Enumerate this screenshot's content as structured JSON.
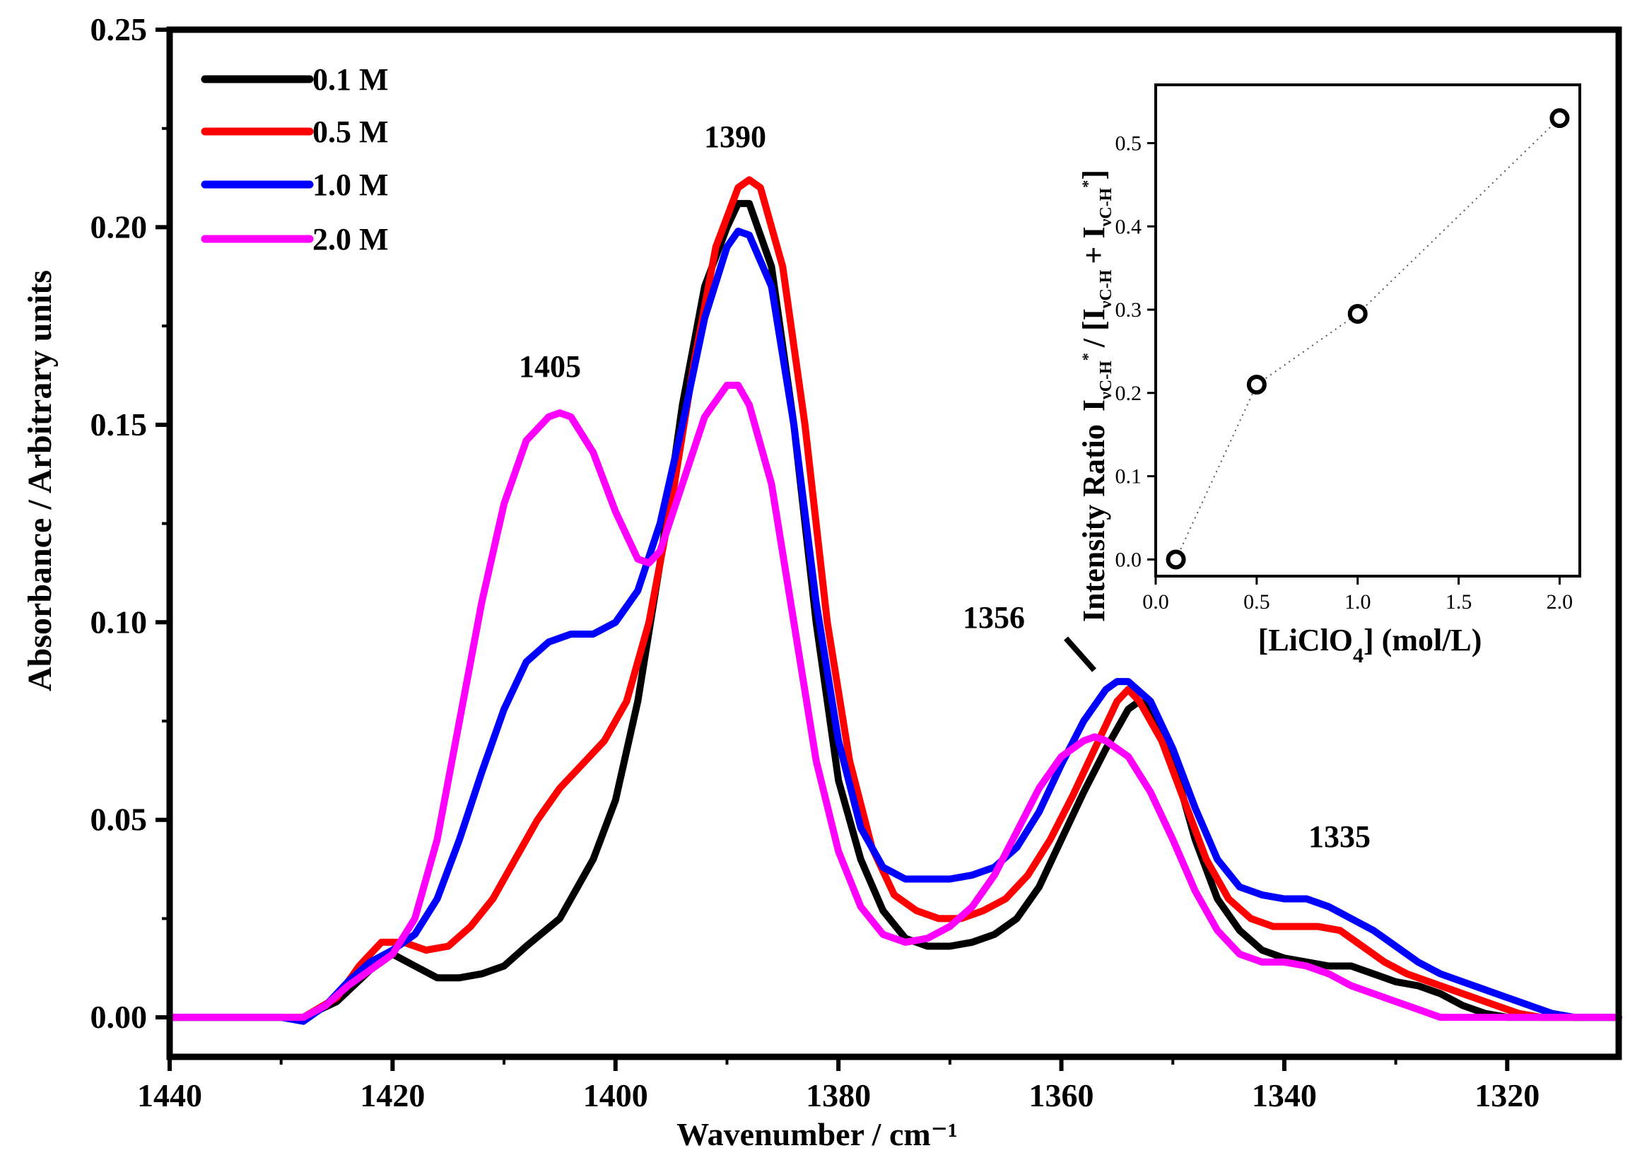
{
  "chart_data": [
    {
      "type": "line",
      "title": "",
      "xlabel": "Wavenumber / cm⁻¹",
      "ylabel": "Absorbance / Arbitrary units",
      "xlim": [
        1440,
        1310
      ],
      "ylim": [
        -0.01,
        0.25
      ],
      "x_ticks": [
        1440,
        1420,
        1400,
        1380,
        1360,
        1340,
        1320
      ],
      "x_tick_labels": [
        "1440",
        "1420",
        "1400",
        "1380",
        "1360",
        "1340",
        "1320"
      ],
      "y_ticks": [
        0.0,
        0.05,
        0.1,
        0.15,
        0.2,
        0.25
      ],
      "y_tick_labels": [
        "0.00",
        "0.05",
        "0.10",
        "0.15",
        "0.20",
        "0.25"
      ],
      "legend": {
        "placement": "top-left",
        "entries": [
          "0.1 M",
          "0.5 M",
          "1.0 M",
          "2.0 M"
        ]
      },
      "annotations": [
        {
          "text": "1390",
          "x": 1389,
          "y": 0.222
        },
        {
          "text": "1405",
          "x": 1405,
          "y": 0.161
        },
        {
          "text": "1356",
          "x": 1364,
          "y": 0.098
        },
        {
          "text": "1335",
          "x": 1335,
          "y": 0.043
        }
      ],
      "series": [
        {
          "name": "0.1 M",
          "color": "#000000",
          "points": [
            [
              1440,
              0.0
            ],
            [
              1436,
              0.0
            ],
            [
              1432,
              0.0
            ],
            [
              1428,
              0.0
            ],
            [
              1425,
              0.004
            ],
            [
              1422,
              0.012
            ],
            [
              1420,
              0.016
            ],
            [
              1418,
              0.013
            ],
            [
              1416,
              0.01
            ],
            [
              1414,
              0.01
            ],
            [
              1412,
              0.011
            ],
            [
              1410,
              0.013
            ],
            [
              1408,
              0.018
            ],
            [
              1405,
              0.025
            ],
            [
              1402,
              0.04
            ],
            [
              1400,
              0.055
            ],
            [
              1398,
              0.08
            ],
            [
              1396,
              0.115
            ],
            [
              1394,
              0.155
            ],
            [
              1392,
              0.185
            ],
            [
              1390,
              0.2
            ],
            [
              1389,
              0.206
            ],
            [
              1388,
              0.206
            ],
            [
              1386,
              0.19
            ],
            [
              1384,
              0.15
            ],
            [
              1382,
              0.1
            ],
            [
              1380,
              0.06
            ],
            [
              1378,
              0.04
            ],
            [
              1376,
              0.027
            ],
            [
              1374,
              0.02
            ],
            [
              1372,
              0.018
            ],
            [
              1370,
              0.018
            ],
            [
              1368,
              0.019
            ],
            [
              1366,
              0.021
            ],
            [
              1364,
              0.025
            ],
            [
              1362,
              0.033
            ],
            [
              1360,
              0.045
            ],
            [
              1358,
              0.057
            ],
            [
              1356,
              0.068
            ],
            [
              1354,
              0.078
            ],
            [
              1353,
              0.08
            ],
            [
              1352,
              0.078
            ],
            [
              1350,
              0.065
            ],
            [
              1348,
              0.045
            ],
            [
              1346,
              0.03
            ],
            [
              1344,
              0.022
            ],
            [
              1342,
              0.017
            ],
            [
              1340,
              0.015
            ],
            [
              1338,
              0.014
            ],
            [
              1336,
              0.013
            ],
            [
              1334,
              0.013
            ],
            [
              1332,
              0.011
            ],
            [
              1330,
              0.009
            ],
            [
              1328,
              0.008
            ],
            [
              1326,
              0.006
            ],
            [
              1324,
              0.003
            ],
            [
              1322,
              0.001
            ],
            [
              1320,
              0.0
            ],
            [
              1315,
              0.0
            ],
            [
              1310,
              0.0
            ]
          ]
        },
        {
          "name": "0.5 M",
          "color": "#ff0000",
          "points": [
            [
              1440,
              0.0
            ],
            [
              1436,
              0.0
            ],
            [
              1432,
              0.0
            ],
            [
              1428,
              0.0
            ],
            [
              1425,
              0.005
            ],
            [
              1423,
              0.013
            ],
            [
              1421,
              0.019
            ],
            [
              1419,
              0.019
            ],
            [
              1417,
              0.017
            ],
            [
              1415,
              0.018
            ],
            [
              1413,
              0.023
            ],
            [
              1411,
              0.03
            ],
            [
              1409,
              0.04
            ],
            [
              1407,
              0.05
            ],
            [
              1405,
              0.058
            ],
            [
              1403,
              0.064
            ],
            [
              1401,
              0.07
            ],
            [
              1399,
              0.08
            ],
            [
              1397,
              0.1
            ],
            [
              1395,
              0.13
            ],
            [
              1393,
              0.165
            ],
            [
              1391,
              0.195
            ],
            [
              1389,
              0.21
            ],
            [
              1388,
              0.212
            ],
            [
              1387,
              0.21
            ],
            [
              1385,
              0.19
            ],
            [
              1383,
              0.15
            ],
            [
              1381,
              0.1
            ],
            [
              1379,
              0.065
            ],
            [
              1377,
              0.043
            ],
            [
              1375,
              0.031
            ],
            [
              1373,
              0.027
            ],
            [
              1371,
              0.025
            ],
            [
              1369,
              0.025
            ],
            [
              1367,
              0.027
            ],
            [
              1365,
              0.03
            ],
            [
              1363,
              0.036
            ],
            [
              1361,
              0.045
            ],
            [
              1359,
              0.056
            ],
            [
              1357,
              0.068
            ],
            [
              1355,
              0.08
            ],
            [
              1354,
              0.083
            ],
            [
              1353,
              0.08
            ],
            [
              1351,
              0.07
            ],
            [
              1349,
              0.055
            ],
            [
              1347,
              0.04
            ],
            [
              1345,
              0.03
            ],
            [
              1343,
              0.025
            ],
            [
              1341,
              0.023
            ],
            [
              1339,
              0.023
            ],
            [
              1337,
              0.023
            ],
            [
              1335,
              0.022
            ],
            [
              1333,
              0.018
            ],
            [
              1331,
              0.014
            ],
            [
              1329,
              0.011
            ],
            [
              1327,
              0.009
            ],
            [
              1325,
              0.007
            ],
            [
              1323,
              0.005
            ],
            [
              1321,
              0.003
            ],
            [
              1319,
              0.001
            ],
            [
              1317,
              0.0
            ],
            [
              1310,
              0.0
            ]
          ]
        },
        {
          "name": "1.0 M",
          "color": "#0000ff",
          "points": [
            [
              1440,
              0.0
            ],
            [
              1436,
              0.0
            ],
            [
              1432,
              0.0
            ],
            [
              1430,
              0.0
            ],
            [
              1428,
              -0.001
            ],
            [
              1426,
              0.003
            ],
            [
              1424,
              0.009
            ],
            [
              1422,
              0.014
            ],
            [
              1420,
              0.017
            ],
            [
              1418,
              0.021
            ],
            [
              1416,
              0.03
            ],
            [
              1414,
              0.045
            ],
            [
              1412,
              0.062
            ],
            [
              1410,
              0.078
            ],
            [
              1408,
              0.09
            ],
            [
              1406,
              0.095
            ],
            [
              1404,
              0.097
            ],
            [
              1402,
              0.097
            ],
            [
              1400,
              0.1
            ],
            [
              1398,
              0.108
            ],
            [
              1396,
              0.125
            ],
            [
              1394,
              0.15
            ],
            [
              1392,
              0.177
            ],
            [
              1390,
              0.195
            ],
            [
              1389,
              0.199
            ],
            [
              1388,
              0.198
            ],
            [
              1386,
              0.185
            ],
            [
              1384,
              0.15
            ],
            [
              1382,
              0.105
            ],
            [
              1380,
              0.07
            ],
            [
              1378,
              0.048
            ],
            [
              1376,
              0.038
            ],
            [
              1374,
              0.035
            ],
            [
              1372,
              0.035
            ],
            [
              1370,
              0.035
            ],
            [
              1368,
              0.036
            ],
            [
              1366,
              0.038
            ],
            [
              1364,
              0.043
            ],
            [
              1362,
              0.052
            ],
            [
              1360,
              0.064
            ],
            [
              1358,
              0.075
            ],
            [
              1356,
              0.083
            ],
            [
              1355,
              0.085
            ],
            [
              1354,
              0.085
            ],
            [
              1352,
              0.08
            ],
            [
              1350,
              0.068
            ],
            [
              1348,
              0.053
            ],
            [
              1346,
              0.04
            ],
            [
              1344,
              0.033
            ],
            [
              1342,
              0.031
            ],
            [
              1340,
              0.03
            ],
            [
              1338,
              0.03
            ],
            [
              1336,
              0.028
            ],
            [
              1334,
              0.025
            ],
            [
              1332,
              0.022
            ],
            [
              1330,
              0.018
            ],
            [
              1328,
              0.014
            ],
            [
              1326,
              0.011
            ],
            [
              1324,
              0.009
            ],
            [
              1322,
              0.007
            ],
            [
              1320,
              0.005
            ],
            [
              1318,
              0.003
            ],
            [
              1316,
              0.001
            ],
            [
              1314,
              0.0
            ],
            [
              1310,
              0.0
            ]
          ]
        },
        {
          "name": "2.0 M",
          "color": "#ff00ff",
          "points": [
            [
              1440,
              0.0
            ],
            [
              1436,
              0.0
            ],
            [
              1432,
              0.0
            ],
            [
              1428,
              0.0
            ],
            [
              1426,
              0.003
            ],
            [
              1424,
              0.008
            ],
            [
              1422,
              0.012
            ],
            [
              1420,
              0.016
            ],
            [
              1418,
              0.025
            ],
            [
              1416,
              0.045
            ],
            [
              1414,
              0.075
            ],
            [
              1412,
              0.105
            ],
            [
              1410,
              0.13
            ],
            [
              1408,
              0.146
            ],
            [
              1406,
              0.152
            ],
            [
              1405,
              0.153
            ],
            [
              1404,
              0.152
            ],
            [
              1402,
              0.143
            ],
            [
              1400,
              0.128
            ],
            [
              1398,
              0.116
            ],
            [
              1397,
              0.115
            ],
            [
              1396,
              0.118
            ],
            [
              1394,
              0.135
            ],
            [
              1392,
              0.152
            ],
            [
              1390,
              0.16
            ],
            [
              1389,
              0.16
            ],
            [
              1388,
              0.155
            ],
            [
              1386,
              0.135
            ],
            [
              1384,
              0.1
            ],
            [
              1382,
              0.065
            ],
            [
              1380,
              0.042
            ],
            [
              1378,
              0.028
            ],
            [
              1376,
              0.021
            ],
            [
              1374,
              0.019
            ],
            [
              1372,
              0.02
            ],
            [
              1370,
              0.023
            ],
            [
              1368,
              0.028
            ],
            [
              1366,
              0.036
            ],
            [
              1364,
              0.047
            ],
            [
              1362,
              0.058
            ],
            [
              1360,
              0.066
            ],
            [
              1358,
              0.07
            ],
            [
              1357,
              0.071
            ],
            [
              1356,
              0.07
            ],
            [
              1354,
              0.066
            ],
            [
              1352,
              0.057
            ],
            [
              1350,
              0.045
            ],
            [
              1348,
              0.032
            ],
            [
              1346,
              0.022
            ],
            [
              1344,
              0.016
            ],
            [
              1342,
              0.014
            ],
            [
              1340,
              0.014
            ],
            [
              1338,
              0.013
            ],
            [
              1336,
              0.011
            ],
            [
              1334,
              0.008
            ],
            [
              1332,
              0.006
            ],
            [
              1330,
              0.004
            ],
            [
              1328,
              0.002
            ],
            [
              1326,
              0.0
            ],
            [
              1320,
              0.0
            ],
            [
              1310,
              0.0
            ]
          ]
        }
      ]
    },
    {
      "type": "scatter",
      "title": "",
      "xlabel": "[LiClO",
      "xlabel_sub": "4",
      "xlabel_tail": "]  (mol/L)",
      "ylabel": "Intensity Ratio",
      "ylabel_formula": "I_{νC-H *} / [I_{νC-H} + I_{νC-H *}]",
      "xlim": [
        0.0,
        2.1
      ],
      "ylim": [
        -0.02,
        0.57
      ],
      "x_ticks": [
        0.0,
        0.5,
        1.0,
        1.5,
        2.0
      ],
      "x_tick_labels": [
        "0.0",
        "0.5",
        "1.0",
        "1.5",
        "2.0"
      ],
      "y_ticks": [
        0.0,
        0.1,
        0.2,
        0.3,
        0.4,
        0.5
      ],
      "y_tick_labels": [
        "0.0",
        "0.1",
        "0.2",
        "0.3",
        "0.4",
        "0.5"
      ],
      "x": [
        0.1,
        0.5,
        1.0,
        2.0
      ],
      "y": [
        0.0,
        0.21,
        0.295,
        0.53
      ],
      "marker": "open circle",
      "connector": "dotted"
    }
  ]
}
